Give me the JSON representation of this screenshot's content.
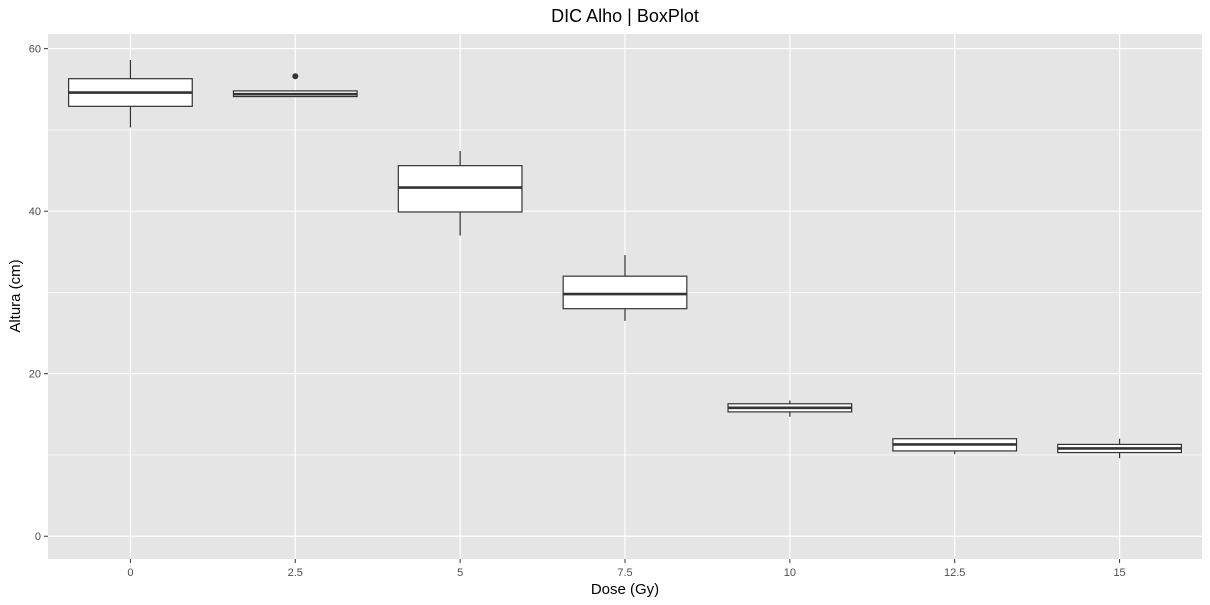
{
  "chart_data": {
    "type": "boxplot",
    "title": "DIC Alho | BoxPlot",
    "xlabel": "Dose (Gy)",
    "ylabel": "Altura (cm)",
    "ylim": [
      -2.8,
      61.8
    ],
    "yticks": [
      0,
      20,
      40,
      60
    ],
    "grid": true,
    "categories": [
      "0",
      "2.5",
      "5",
      "7.5",
      "10",
      "12.5",
      "15"
    ],
    "boxes": [
      {
        "category": "0",
        "whisker_low": 50.3,
        "q1": 52.9,
        "median": 54.6,
        "q3": 56.3,
        "whisker_high": 58.6,
        "outliers": []
      },
      {
        "category": "2.5",
        "whisker_low": 54.1,
        "q1": 54.1,
        "median": 54.4,
        "q3": 54.8,
        "whisker_high": 54.8,
        "outliers": [
          56.6
        ]
      },
      {
        "category": "5",
        "whisker_low": 37.0,
        "q1": 39.9,
        "median": 42.9,
        "q3": 45.6,
        "whisker_high": 47.4,
        "outliers": []
      },
      {
        "category": "7.5",
        "whisker_low": 26.5,
        "q1": 28.0,
        "median": 29.8,
        "q3": 32.0,
        "whisker_high": 34.6,
        "outliers": []
      },
      {
        "category": "10",
        "whisker_low": 14.7,
        "q1": 15.3,
        "median": 15.8,
        "q3": 16.3,
        "whisker_high": 16.7,
        "outliers": []
      },
      {
        "category": "12.5",
        "whisker_low": 10.1,
        "q1": 10.5,
        "median": 11.3,
        "q3": 12.0,
        "whisker_high": 12.0,
        "outliers": []
      },
      {
        "category": "15",
        "whisker_low": 9.6,
        "q1": 10.3,
        "median": 10.8,
        "q3": 11.3,
        "whisker_high": 12.0,
        "outliers": []
      }
    ],
    "colors": {
      "panel_background": "#e5e5e5",
      "grid": "#ffffff",
      "box_fill": "#ffffff",
      "box_stroke": "#333333",
      "tick_text": "#4d4d4d"
    }
  }
}
